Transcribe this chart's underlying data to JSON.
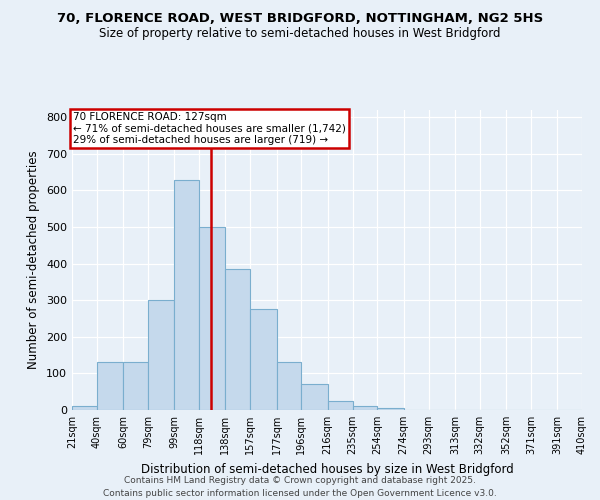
{
  "title1": "70, FLORENCE ROAD, WEST BRIDGFORD, NOTTINGHAM, NG2 5HS",
  "title2": "Size of property relative to semi-detached houses in West Bridgford",
  "xlabel": "Distribution of semi-detached houses by size in West Bridgford",
  "ylabel": "Number of semi-detached properties",
  "bin_edges": [
    21,
    40,
    60,
    79,
    99,
    118,
    138,
    157,
    177,
    196,
    216,
    235,
    254,
    274,
    293,
    313,
    332,
    352,
    371,
    391,
    410
  ],
  "bar_heights": [
    10,
    130,
    130,
    300,
    630,
    500,
    385,
    275,
    130,
    70,
    25,
    10,
    5,
    0,
    0,
    0,
    0,
    0,
    0,
    0
  ],
  "property_size": 127,
  "annotation_line1": "70 FLORENCE ROAD: 127sqm",
  "annotation_line2": "← 71% of semi-detached houses are smaller (1,742)",
  "annotation_line3": "29% of semi-detached houses are larger (719) →",
  "bar_color": "#c5d9ec",
  "bar_edge_color": "#7aaece",
  "red_line_color": "#cc0000",
  "annotation_box_color": "#cc0000",
  "background_color": "#e8f0f8",
  "grid_color": "#d0dce8",
  "footer_line1": "Contains HM Land Registry data © Crown copyright and database right 2025.",
  "footer_line2": "Contains public sector information licensed under the Open Government Licence v3.0.",
  "ylim": [
    0,
    820
  ],
  "yticks": [
    0,
    100,
    200,
    300,
    400,
    500,
    600,
    700,
    800
  ]
}
